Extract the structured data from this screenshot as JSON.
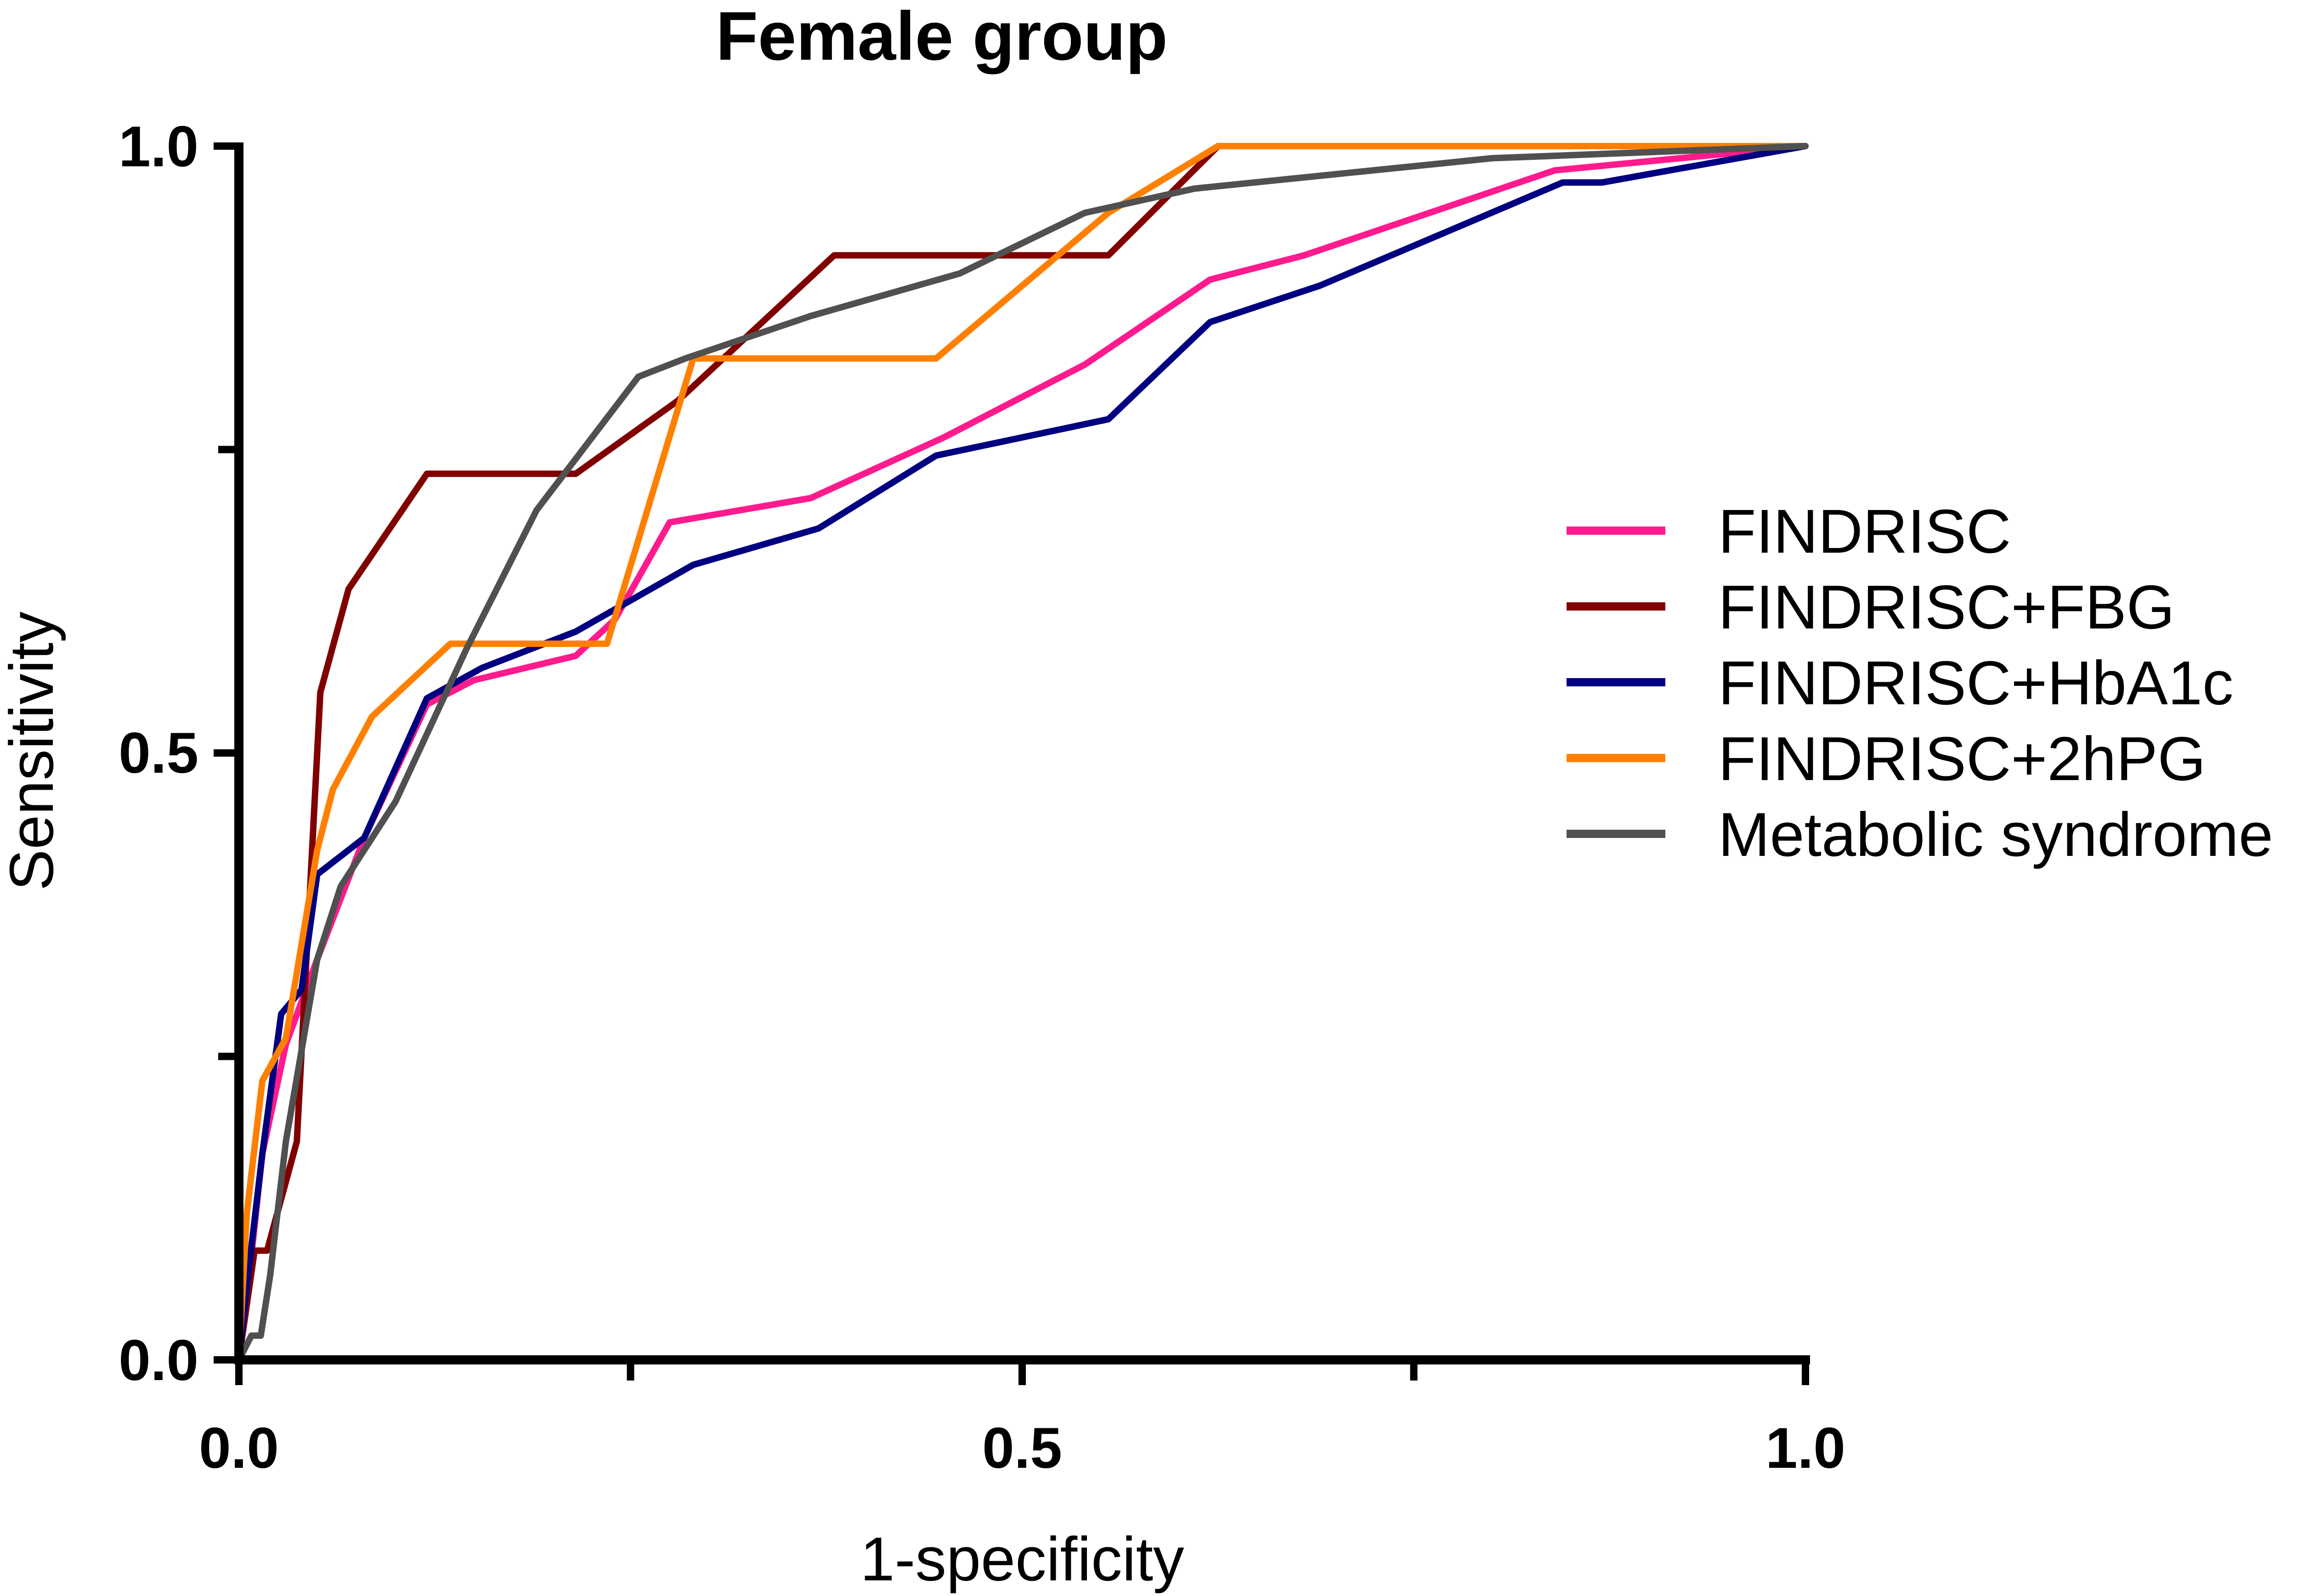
{
  "chart_data": {
    "type": "line",
    "title": "Female group",
    "xlabel": "1-specificity",
    "ylabel": "Sensitivity",
    "xlim": [
      0,
      1
    ],
    "ylim": [
      0,
      1
    ],
    "x_ticks": [
      "0.0",
      "0.5",
      "1.0"
    ],
    "y_ticks": [
      "0.0",
      "0.5",
      "1.0"
    ],
    "legend_position": "right",
    "grid": false,
    "series": [
      {
        "name": "FINDRISC",
        "color": "#ff1b8d",
        "points": [
          [
            0,
            0
          ],
          [
            0.005,
            0.05
          ],
          [
            0.015,
            0.17
          ],
          [
            0.03,
            0.26
          ],
          [
            0.05,
            0.33
          ],
          [
            0.08,
            0.43
          ],
          [
            0.12,
            0.54
          ],
          [
            0.15,
            0.56
          ],
          [
            0.215,
            0.58
          ],
          [
            0.24,
            0.61
          ],
          [
            0.275,
            0.69
          ],
          [
            0.365,
            0.71
          ],
          [
            0.45,
            0.76
          ],
          [
            0.54,
            0.82
          ],
          [
            0.62,
            0.89
          ],
          [
            0.68,
            0.91
          ],
          [
            0.84,
            0.98
          ],
          [
            1,
            1
          ]
        ]
      },
      {
        "name": "FINDRISC+FBG",
        "color": "#800000",
        "points": [
          [
            0,
            0
          ],
          [
            0.01,
            0.09
          ],
          [
            0.018,
            0.09
          ],
          [
            0.037,
            0.18
          ],
          [
            0.052,
            0.55
          ],
          [
            0.07,
            0.635
          ],
          [
            0.12,
            0.73
          ],
          [
            0.215,
            0.73
          ],
          [
            0.28,
            0.79
          ],
          [
            0.38,
            0.91
          ],
          [
            0.555,
            0.91
          ],
          [
            0.625,
            1.0
          ],
          [
            1,
            1
          ]
        ]
      },
      {
        "name": "FINDRISC+HbA1c",
        "color": "#000080",
        "points": [
          [
            0,
            0
          ],
          [
            0.005,
            0.06
          ],
          [
            0.015,
            0.17
          ],
          [
            0.027,
            0.285
          ],
          [
            0.04,
            0.305
          ],
          [
            0.05,
            0.4
          ],
          [
            0.08,
            0.43
          ],
          [
            0.12,
            0.545
          ],
          [
            0.155,
            0.57
          ],
          [
            0.215,
            0.6
          ],
          [
            0.29,
            0.655
          ],
          [
            0.37,
            0.685
          ],
          [
            0.445,
            0.745
          ],
          [
            0.555,
            0.775
          ],
          [
            0.62,
            0.855
          ],
          [
            0.69,
            0.885
          ],
          [
            0.845,
            0.97
          ],
          [
            0.87,
            0.97
          ],
          [
            1,
            1
          ]
        ]
      },
      {
        "name": "FINDRISC+2hPG",
        "color": "#ff8000",
        "points": [
          [
            0,
            0
          ],
          [
            0.005,
            0.12
          ],
          [
            0.015,
            0.23
          ],
          [
            0.03,
            0.265
          ],
          [
            0.05,
            0.42
          ],
          [
            0.06,
            0.47
          ],
          [
            0.085,
            0.53
          ],
          [
            0.135,
            0.59
          ],
          [
            0.235,
            0.59
          ],
          [
            0.29,
            0.825
          ],
          [
            0.335,
            0.825
          ],
          [
            0.445,
            0.825
          ],
          [
            0.555,
            0.945
          ],
          [
            0.625,
            1.0
          ],
          [
            1,
            1
          ]
        ]
      },
      {
        "name": "Metabolic syndrome",
        "color": "#505050",
        "points": [
          [
            0,
            0
          ],
          [
            0.008,
            0.02
          ],
          [
            0.014,
            0.02
          ],
          [
            0.02,
            0.07
          ],
          [
            0.03,
            0.18
          ],
          [
            0.05,
            0.33
          ],
          [
            0.065,
            0.39
          ],
          [
            0.1,
            0.46
          ],
          [
            0.145,
            0.585
          ],
          [
            0.19,
            0.7
          ],
          [
            0.255,
            0.81
          ],
          [
            0.285,
            0.825
          ],
          [
            0.365,
            0.86
          ],
          [
            0.46,
            0.895
          ],
          [
            0.54,
            0.945
          ],
          [
            0.61,
            0.965
          ],
          [
            0.8,
            0.99
          ],
          [
            1,
            1
          ]
        ]
      }
    ]
  }
}
